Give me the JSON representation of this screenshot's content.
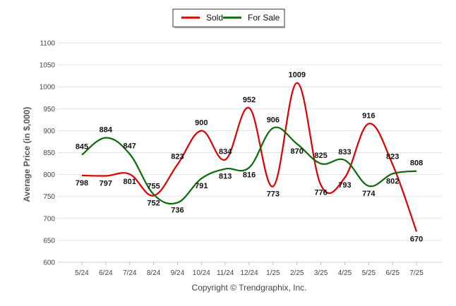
{
  "chart_data": {
    "type": "line",
    "categories": [
      "5/24",
      "6/24",
      "7/24",
      "8/24",
      "9/24",
      "10/24",
      "11/24",
      "12/24",
      "1/25",
      "2/25",
      "3/25",
      "4/25",
      "5/25",
      "6/25",
      "7/25"
    ],
    "series": [
      {
        "name": "Sold",
        "color": "#dd0000",
        "values": [
          798,
          797,
          801,
          752,
          823,
          900,
          834,
          952,
          773,
          1009,
          776,
          793,
          916,
          823,
          670
        ]
      },
      {
        "name": "For Sale",
        "color": "#0b6b0b",
        "values": [
          845,
          884,
          847,
          755,
          736,
          791,
          813,
          816,
          906,
          870,
          825,
          833,
          774,
          802,
          808
        ]
      }
    ],
    "ylabel": "Average Price (in $,000)",
    "xlabel": "",
    "ylim": [
      600,
      1100
    ],
    "yticks": [
      600,
      650,
      700,
      750,
      800,
      850,
      900,
      950,
      1000,
      1050,
      1100
    ],
    "grid": true,
    "legend": "top-center"
  },
  "footer": {
    "copyright": "Copyright © Trendgraphix, Inc."
  }
}
